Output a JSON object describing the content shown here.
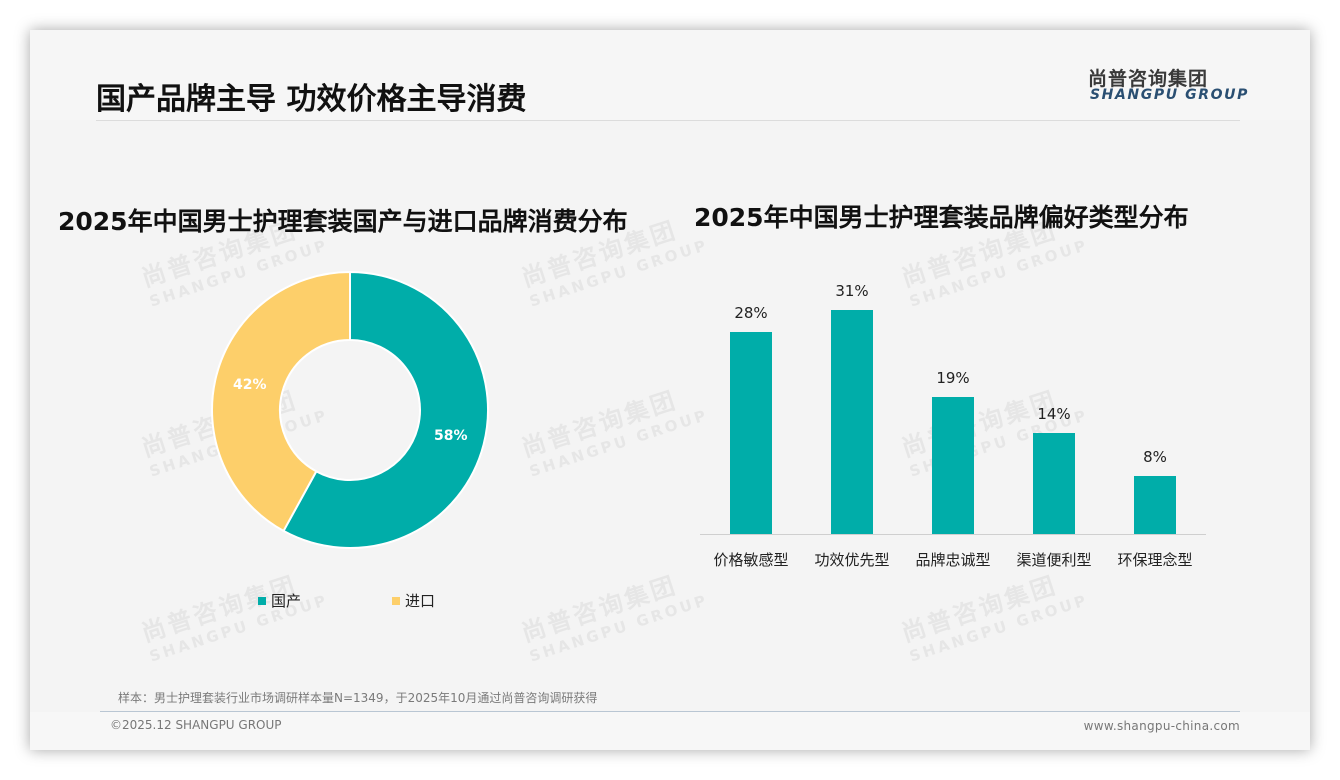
{
  "header": {
    "title": "国产品牌主导 功效价格主导消费",
    "logo_cn": "尚普咨询集团",
    "logo_en": "SHANGPU GROUP"
  },
  "watermark": {
    "cn": "尚普咨询集团",
    "en": "SHANGPU GROUP"
  },
  "colors": {
    "teal": "#00ada9",
    "yellow": "#fdcf6a",
    "logo_blue": "#2a4f72"
  },
  "footer": {
    "note": "样本：男士护理套装行业市场调研样本量N=1349，于2025年10月通过尚普咨询调研获得",
    "copyright": "©2025.12 SHANGPU GROUP",
    "website": "www.shangpu-china.com"
  },
  "chart_data": [
    {
      "type": "pie",
      "variant": "donut",
      "title": "2025年中国男士护理套装国产与进口品牌消费分布",
      "categories": [
        "国产",
        "进口"
      ],
      "values": [
        58,
        42
      ],
      "labels": [
        "58%",
        "42%"
      ],
      "colors": [
        "#00ada9",
        "#fdcf6a"
      ],
      "legend": {
        "position": "bottom",
        "entries": [
          "国产",
          "进口"
        ]
      }
    },
    {
      "type": "bar",
      "title": "2025年中国男士护理套装品牌偏好类型分布",
      "categories": [
        "价格敏感型",
        "功效优先型",
        "品牌忠诚型",
        "渠道便利型",
        "环保理念型"
      ],
      "values": [
        28,
        31,
        19,
        14,
        8
      ],
      "labels": [
        "28%",
        "31%",
        "19%",
        "14%",
        "8%"
      ],
      "unit": "%",
      "color": "#00ada9",
      "xlabel": "",
      "ylabel": "",
      "ylim": [
        0,
        31
      ],
      "grid": false,
      "legend": null
    }
  ]
}
